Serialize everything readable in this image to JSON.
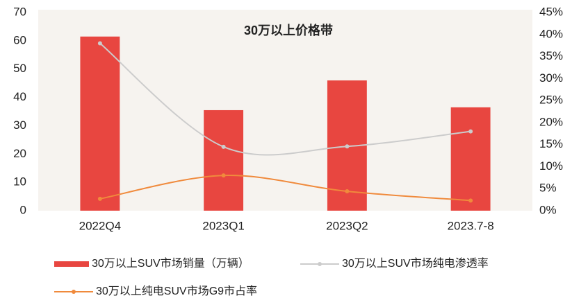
{
  "chart_data": {
    "type": "bar",
    "title": "30万以上价格带",
    "categories": [
      "2022Q4",
      "2023Q1",
      "2023Q2",
      "2023.7-8"
    ],
    "series": [
      {
        "name": "30万以上SUV市场销量（万辆）",
        "type": "bar",
        "color": "#e84640",
        "values": [
          61.5,
          35.5,
          46,
          36.5
        ]
      },
      {
        "name": "30万以上SUV市场纯电渗透率",
        "type": "line",
        "axis": "y2",
        "color": "#cccccc",
        "values": [
          38,
          14.5,
          14.6,
          18
        ]
      },
      {
        "name": "30万以上纯电SUV市场G9市占率",
        "type": "line",
        "axis": "y2",
        "color": "#f08a3c",
        "values": [
          2.7,
          8,
          4.4,
          2.3
        ]
      }
    ],
    "ylim": [
      0,
      70
    ],
    "yticks": [
      0,
      10,
      20,
      30,
      40,
      50,
      60,
      70
    ],
    "y2lim": [
      0,
      45
    ],
    "y2ticks": [
      {
        "value": 0,
        "label": "0%"
      },
      {
        "value": 5,
        "label": "5%"
      },
      {
        "value": 10,
        "label": "10%"
      },
      {
        "value": 15,
        "label": "15%"
      },
      {
        "value": 20,
        "label": "20%"
      },
      {
        "value": 25,
        "label": "25%"
      },
      {
        "value": 30,
        "label": "30%"
      },
      {
        "value": 35,
        "label": "35%"
      },
      {
        "value": 40,
        "label": "40%"
      },
      {
        "value": 45,
        "label": "45%"
      }
    ],
    "legend": "bottom"
  }
}
